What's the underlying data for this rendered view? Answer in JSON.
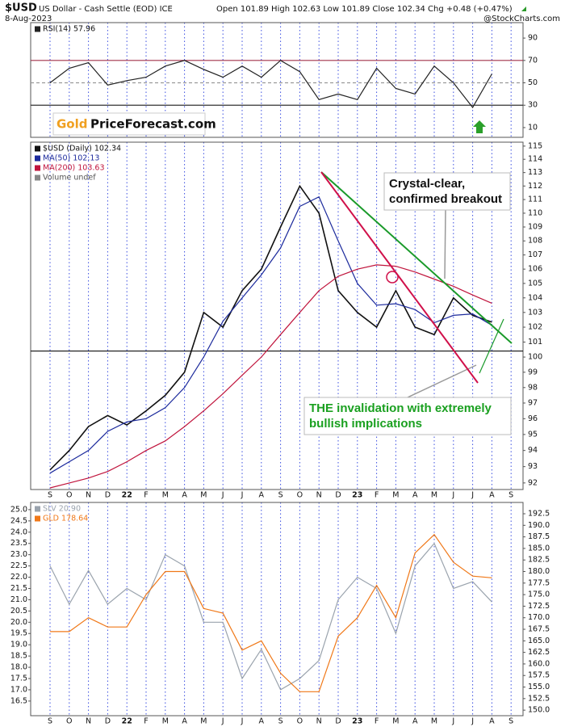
{
  "header": {
    "symbol": "$USD",
    "name": "US Dollar - Cash Settle (EOD) ICE",
    "date": "8-Aug-2023",
    "quote": "Open 101.89  High 102.63  Low 101.89  Close 102.34  Chg +0.48 (+0.47%)",
    "credit": "@StockCharts.com",
    "logo": {
      "part1": "Gold",
      "part2": "PriceForecast.com"
    }
  },
  "annotations": [
    {
      "lines": [
        "Crystal-clear,",
        "confirmed breakout"
      ]
    },
    {
      "lines": [
        "THE invalidation with extremely",
        "bullish implications"
      ]
    }
  ],
  "chart_data": [
    {
      "type": "line",
      "categories": [
        "S",
        "O",
        "N",
        "D",
        "22",
        "F",
        "M",
        "A",
        "M",
        "J",
        "J",
        "A",
        "S",
        "O",
        "N",
        "D",
        "23",
        "F",
        "M",
        "A",
        "M",
        "J",
        "J",
        "A",
        "S"
      ],
      "series": [
        {
          "name": "RSI(14) 57.96",
          "color": "#222222",
          "values": [
            50,
            63,
            68,
            48,
            52,
            55,
            65,
            70,
            62,
            55,
            65,
            55,
            70,
            60,
            35,
            40,
            35,
            63,
            45,
            40,
            65,
            50,
            28,
            57.96,
            null
          ]
        }
      ],
      "ylim": [
        1.3,
        103.8
      ],
      "yticks": [
        10,
        30,
        50,
        70,
        90
      ],
      "levels": [
        {
          "value": 70,
          "color": "#a0304a"
        },
        {
          "value": 50,
          "color": "#999999"
        },
        {
          "value": 30,
          "color": "#333333"
        }
      ]
    },
    {
      "type": "line",
      "categories": [
        "S",
        "O",
        "N",
        "D",
        "22",
        "F",
        "M",
        "A",
        "M",
        "J",
        "J",
        "A",
        "S",
        "O",
        "N",
        "D",
        "23",
        "F",
        "M",
        "A",
        "M",
        "J",
        "J",
        "A",
        "S"
      ],
      "series": [
        {
          "name": "$USD (Daily) 102.34",
          "color": "#111111",
          "values": [
            92.8,
            94,
            95.5,
            96.2,
            95.6,
            96.5,
            97.5,
            99,
            103,
            102,
            104.5,
            106,
            109,
            112,
            110,
            104.5,
            103,
            102,
            104.5,
            102,
            101.5,
            104,
            102.8,
            102.34,
            null
          ]
        },
        {
          "name": "MA(50) 102.13",
          "color": "#1c2a9c",
          "values": [
            92.6,
            93.3,
            94,
            95.2,
            95.8,
            96,
            96.7,
            98,
            100,
            102.4,
            104,
            105.6,
            107.5,
            110.5,
            111.2,
            108,
            105,
            103.5,
            103.6,
            103.2,
            102.3,
            102.8,
            102.9,
            102.13,
            null
          ]
        },
        {
          "name": "MA(200) 103.63",
          "color": "#c0143c",
          "values": [
            91.7,
            92,
            92.3,
            92.7,
            93.3,
            94,
            94.6,
            95.5,
            96.5,
            97.6,
            98.8,
            100,
            101.5,
            103,
            104.5,
            105.5,
            106,
            106.3,
            106.2,
            105.8,
            105.3,
            104.8,
            104.2,
            103.63,
            null
          ]
        }
      ],
      "legend_extra": "Volume undef",
      "log_scale": true,
      "ylim": [
        91.6,
        115.3
      ],
      "yticks": [
        92,
        93,
        94,
        95,
        96,
        97,
        98,
        99,
        100,
        101,
        102,
        103,
        104,
        105,
        106,
        107,
        108,
        109,
        110,
        111,
        112,
        113,
        114,
        115
      ],
      "hline": 100.4
    },
    {
      "type": "line",
      "categories": [
        "S",
        "O",
        "N",
        "D",
        "22",
        "F",
        "M",
        "A",
        "M",
        "J",
        "J",
        "A",
        "S",
        "O",
        "N",
        "D",
        "23",
        "F",
        "M",
        "A",
        "M",
        "J",
        "J",
        "A",
        "S"
      ],
      "series": [
        {
          "name": "SLV 20.90",
          "color": "#9aa3ad",
          "values": [
            22.5,
            20.8,
            22.3,
            20.8,
            21.5,
            21,
            23,
            22.5,
            20,
            20,
            17.5,
            18.8,
            17,
            17.5,
            18.3,
            21,
            22,
            21.5,
            19.5,
            22.5,
            23.5,
            21.5,
            21.8,
            20.9,
            null
          ]
        },
        {
          "name": "GLD 178.64",
          "color": "#f07818",
          "axis": "y2",
          "values": [
            167,
            167,
            170,
            168,
            168,
            175,
            180,
            180,
            172,
            171,
            163,
            165,
            158,
            154,
            154,
            166,
            170,
            177,
            170,
            184,
            188,
            182,
            179,
            178.64,
            null
          ]
        }
      ],
      "ylim": [
        15.85,
        25.32
      ],
      "yticks": [
        16.5,
        {
          "value": 17,
          "label": "17.0"
        },
        17.5,
        {
          "value": 18,
          "label": "18.0"
        },
        18.5,
        {
          "value": 19,
          "label": "19.0"
        },
        19.5,
        {
          "value": 20,
          "label": "20.0"
        },
        20.5,
        {
          "value": 21,
          "label": "21.0"
        },
        21.5,
        {
          "value": 22,
          "label": "22.0"
        },
        22.5,
        {
          "value": 23,
          "label": "23.0"
        },
        23.5,
        {
          "value": 24,
          "label": "24.0"
        },
        24.5,
        {
          "value": 25,
          "label": "25.0"
        }
      ],
      "y2lim": [
        148.8,
        194.95
      ],
      "y2ticks": [
        {
          "value": 150,
          "label": "150.0"
        },
        152.5,
        {
          "value": 155,
          "label": "155.0"
        },
        157.5,
        {
          "value": 160,
          "label": "160.0"
        },
        162.5,
        {
          "value": 165,
          "label": "165.0"
        },
        167.5,
        {
          "value": 170,
          "label": "170.0"
        },
        172.5,
        {
          "value": 175,
          "label": "175.0"
        },
        177.5,
        {
          "value": 180,
          "label": "180.0"
        },
        182.5,
        {
          "value": 185,
          "label": "185.0"
        },
        187.5,
        {
          "value": 190,
          "label": "190.0"
        },
        192.5
      ]
    }
  ]
}
